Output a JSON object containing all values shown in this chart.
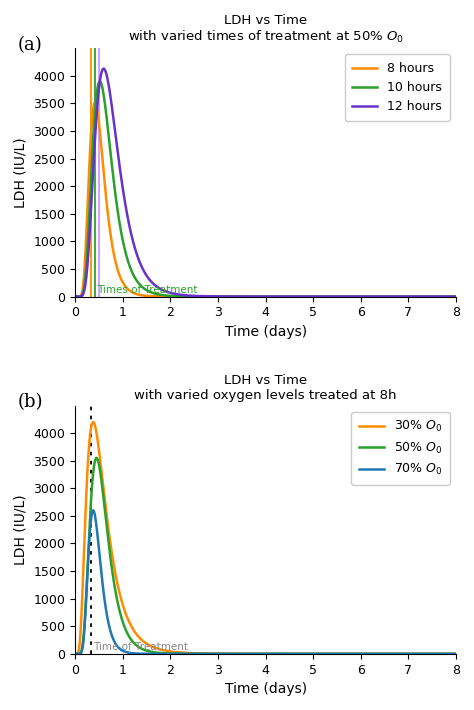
{
  "panel_a": {
    "title_line1": "LDH vs Time",
    "title_line2": "with varied times of treatment at 50% $O_0$",
    "xlabel": "Time (days)",
    "ylabel": "LDH (IU/L)",
    "xlim": [
      0,
      8
    ],
    "ylim": [
      0,
      4500
    ],
    "yticks": [
      0,
      500,
      1000,
      1500,
      2000,
      2500,
      3000,
      3500,
      4000
    ],
    "xticks": [
      0,
      1,
      2,
      3,
      4,
      5,
      6,
      7,
      8
    ],
    "curves": [
      {
        "label": "8 hours",
        "color": "#FF8C00",
        "peak_time": 0.42,
        "peak_value": 3520,
        "sigma": 0.38,
        "vline_x": 0.333,
        "vline_color": "#FF8C00"
      },
      {
        "label": "10 hours",
        "color": "#2ca02c",
        "peak_time": 0.52,
        "peak_value": 3900,
        "sigma": 0.4,
        "vline_x": 0.417,
        "vline_color": "#2ca02c"
      },
      {
        "label": "12 hours",
        "color": "#6633CC",
        "peak_time": 0.6,
        "peak_value": 4130,
        "sigma": 0.42,
        "vline_x": 0.5,
        "vline_color": "#CC99FF"
      }
    ],
    "vline_label": "Times of Treatment",
    "vline_label_color": "#2ca02c",
    "panel_label": "(a)"
  },
  "panel_b": {
    "title_line1": "LDH vs Time",
    "title_line2": "with varied oxygen levels treated at 8h",
    "xlabel": "Time (days)",
    "ylabel": "LDH (IU/L)",
    "xlim": [
      0,
      8
    ],
    "ylim": [
      0,
      4500
    ],
    "yticks": [
      0,
      500,
      1000,
      1500,
      2000,
      2500,
      3000,
      3500,
      4000
    ],
    "xticks": [
      0,
      1,
      2,
      3,
      4,
      5,
      6,
      7,
      8
    ],
    "curves": [
      {
        "label": "30% $O_0$",
        "color": "#FF8C00",
        "peak_time": 0.38,
        "peak_value": 4200,
        "sigma": 0.55
      },
      {
        "label": "50% $O_0$",
        "color": "#2ca02c",
        "peak_time": 0.45,
        "peak_value": 3550,
        "sigma": 0.42
      },
      {
        "label": "70% $O_0$",
        "color": "#1f77b4",
        "peak_time": 0.38,
        "peak_value": 2600,
        "sigma": 0.35
      }
    ],
    "vline_x": 0.333,
    "vline_color": "black",
    "vline_style": "dotted",
    "vline_label": "Time of Treatment",
    "vline_label_color": "#888888",
    "panel_label": "(b)"
  }
}
